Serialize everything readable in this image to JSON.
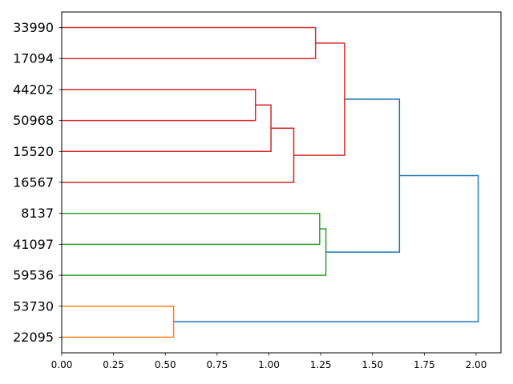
{
  "chart_data": {
    "type": "dendrogram",
    "orientation": "horizontal",
    "title": "",
    "xlabel": "",
    "ylabel": "",
    "xlim": [
      0,
      2.12
    ],
    "x_ticks": [
      "0.00",
      "0.25",
      "0.50",
      "0.75",
      "1.00",
      "1.25",
      "1.50",
      "1.75",
      "2.00"
    ],
    "grid": false,
    "colors": {
      "red": "#d62728",
      "green": "#2ca02c",
      "orange": "#ff7f0e",
      "blue": "#1f77b4"
    },
    "leaves": [
      "33990",
      "17094",
      "44202",
      "50968",
      "15520",
      "16567",
      "8137",
      "41097",
      "59536",
      "53730",
      "22095"
    ],
    "merges": [
      {
        "left": "33990",
        "right": "17094",
        "height": 1.225,
        "color": "red"
      },
      {
        "left": "44202",
        "right": "50968",
        "height": 0.935,
        "color": "red"
      },
      {
        "left": "44202+50968",
        "right": "15520",
        "height": 1.01,
        "color": "red"
      },
      {
        "left": "44202+50968+15520",
        "right": "16567",
        "height": 1.12,
        "color": "red"
      },
      {
        "left": "33990+17094",
        "right": "44202+50968+15520+16567",
        "height": 1.365,
        "color": "red"
      },
      {
        "left": "8137",
        "right": "41097",
        "height": 1.245,
        "color": "green"
      },
      {
        "left": "8137+41097",
        "right": "59536",
        "height": 1.275,
        "color": "green"
      },
      {
        "left": "red-cluster",
        "right": "green-cluster",
        "height": 1.63,
        "color": "blue"
      },
      {
        "left": "53730",
        "right": "22095",
        "height": 0.54,
        "color": "orange"
      },
      {
        "left": "red+green",
        "right": "orange-cluster",
        "height": 2.01,
        "color": "blue"
      }
    ]
  }
}
